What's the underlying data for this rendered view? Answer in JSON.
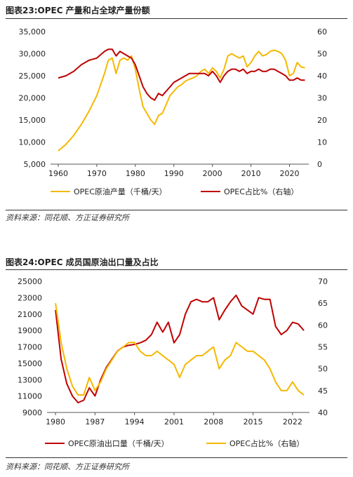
{
  "charts": [
    {
      "title": "图表23:OPEC 产量和占全球产量份额",
      "source": "资料来源：同花顺、方正证券研究所"
    },
    {
      "title": "图表24:OPEC 成员国原油出口量及占比",
      "source": "资料来源：同花顺、方正证券研究所"
    }
  ],
  "colors": {
    "gold": "#F5B800",
    "red": "#C00000",
    "rule": "#333333"
  },
  "chart_data": [
    {
      "type": "line",
      "x": [
        1960,
        1962,
        1964,
        1966,
        1968,
        1970,
        1972,
        1973,
        1974,
        1975,
        1976,
        1977,
        1978,
        1979,
        1980,
        1981,
        1982,
        1983,
        1984,
        1985,
        1986,
        1987,
        1988,
        1989,
        1990,
        1991,
        1992,
        1993,
        1994,
        1995,
        1996,
        1997,
        1998,
        1999,
        2000,
        2001,
        2002,
        2003,
        2004,
        2005,
        2006,
        2007,
        2008,
        2009,
        2010,
        2011,
        2012,
        2013,
        2014,
        2015,
        2016,
        2017,
        2018,
        2019,
        2020,
        2021,
        2022,
        2023,
        2024
      ],
      "xticks": [
        1960,
        1970,
        1980,
        1990,
        2000,
        2010,
        2020
      ],
      "xlim": [
        1958,
        2025
      ],
      "ylim_left": [
        5000,
        35000
      ],
      "yticks_left": [
        "5,000",
        "10,000",
        "15,000",
        "20,000",
        "25,000",
        "30,000",
        "35,000"
      ],
      "ylim_right": [
        0,
        60
      ],
      "yticks_right": [
        "0",
        "10",
        "20",
        "30",
        "40",
        "50",
        "60"
      ],
      "series": [
        {
          "name": "OPEC原油产量（千桶/天）",
          "axis": "left",
          "color": "#F5B800",
          "values": [
            8000,
            9500,
            11500,
            14000,
            17000,
            20500,
            25500,
            28500,
            29000,
            25500,
            28500,
            29000,
            28500,
            29500,
            26500,
            22000,
            18000,
            16500,
            15000,
            14000,
            16000,
            16500,
            18500,
            20500,
            21500,
            22500,
            23000,
            23800,
            24200,
            24500,
            25000,
            26000,
            26500,
            25500,
            26800,
            26000,
            24500,
            26500,
            29500,
            30000,
            29500,
            29000,
            29500,
            27000,
            28000,
            29500,
            30500,
            29500,
            29800,
            30500,
            30800,
            30500,
            30000,
            28500,
            25000,
            25500,
            28000,
            27000,
            26800
          ]
        },
        {
          "name": "OPEC占比%（右轴）",
          "axis": "right",
          "color": "#C00000",
          "values": [
            39,
            40,
            42,
            45,
            47,
            48,
            51,
            52,
            52,
            49,
            51,
            50,
            49,
            48,
            45,
            40,
            35,
            32,
            30,
            29,
            32,
            31,
            33,
            35,
            37,
            38,
            39,
            40,
            41,
            41,
            41,
            41,
            41,
            40,
            42,
            40,
            37,
            40,
            42,
            43,
            43,
            42,
            43,
            41,
            42,
            42,
            43,
            42,
            42,
            43,
            43,
            42,
            41,
            40,
            38,
            38,
            39,
            38,
            38
          ]
        }
      ],
      "legend": "bottom"
    },
    {
      "type": "line",
      "x": [
        1980,
        1981,
        1982,
        1983,
        1984,
        1985,
        1986,
        1987,
        1988,
        1989,
        1990,
        1991,
        1992,
        1993,
        1994,
        1995,
        1996,
        1997,
        1998,
        1999,
        2000,
        2001,
        2002,
        2003,
        2004,
        2005,
        2006,
        2007,
        2008,
        2009,
        2010,
        2011,
        2012,
        2013,
        2014,
        2015,
        2016,
        2017,
        2018,
        2019,
        2020,
        2021,
        2022,
        2023,
        2024
      ],
      "xticks": [
        1980,
        1987,
        1994,
        2001,
        2008,
        2015,
        2022
      ],
      "xlim": [
        1978.5,
        2025
      ],
      "ylim_left": [
        9000,
        25000
      ],
      "yticks_left": [
        "9000",
        "11000",
        "13000",
        "15000",
        "17000",
        "19000",
        "21000",
        "23000",
        "25000"
      ],
      "ylim_right": [
        40,
        70
      ],
      "yticks_right": [
        "40",
        "45",
        "50",
        "55",
        "60",
        "65",
        "70"
      ],
      "series": [
        {
          "name": "OPEC原油出口量（千桶/天）",
          "axis": "left",
          "color": "#C00000",
          "values": [
            21500,
            15500,
            12500,
            11000,
            10200,
            10500,
            12000,
            11000,
            13000,
            14500,
            15500,
            16500,
            17000,
            17200,
            17300,
            17500,
            17800,
            18500,
            20000,
            18800,
            20000,
            17500,
            18500,
            21000,
            22500,
            22800,
            22500,
            22500,
            23000,
            20300,
            21500,
            22500,
            23300,
            22000,
            21500,
            21000,
            23000,
            22800,
            22800,
            19500,
            18500,
            19000,
            20000,
            19800,
            19000
          ]
        },
        {
          "name": "OPEC占比%（右轴）",
          "axis": "right",
          "color": "#F5B800",
          "values": [
            65,
            56,
            50,
            46,
            44,
            44,
            48,
            45,
            47,
            50,
            52,
            54,
            55,
            56,
            56,
            54,
            53,
            53,
            54,
            53,
            52,
            51,
            48,
            51,
            52,
            53,
            53,
            54,
            55,
            50,
            52,
            53,
            56,
            55,
            54,
            54,
            53,
            52,
            50,
            47,
            45,
            45,
            47,
            45,
            44
          ]
        }
      ],
      "legend": "bottom"
    }
  ]
}
